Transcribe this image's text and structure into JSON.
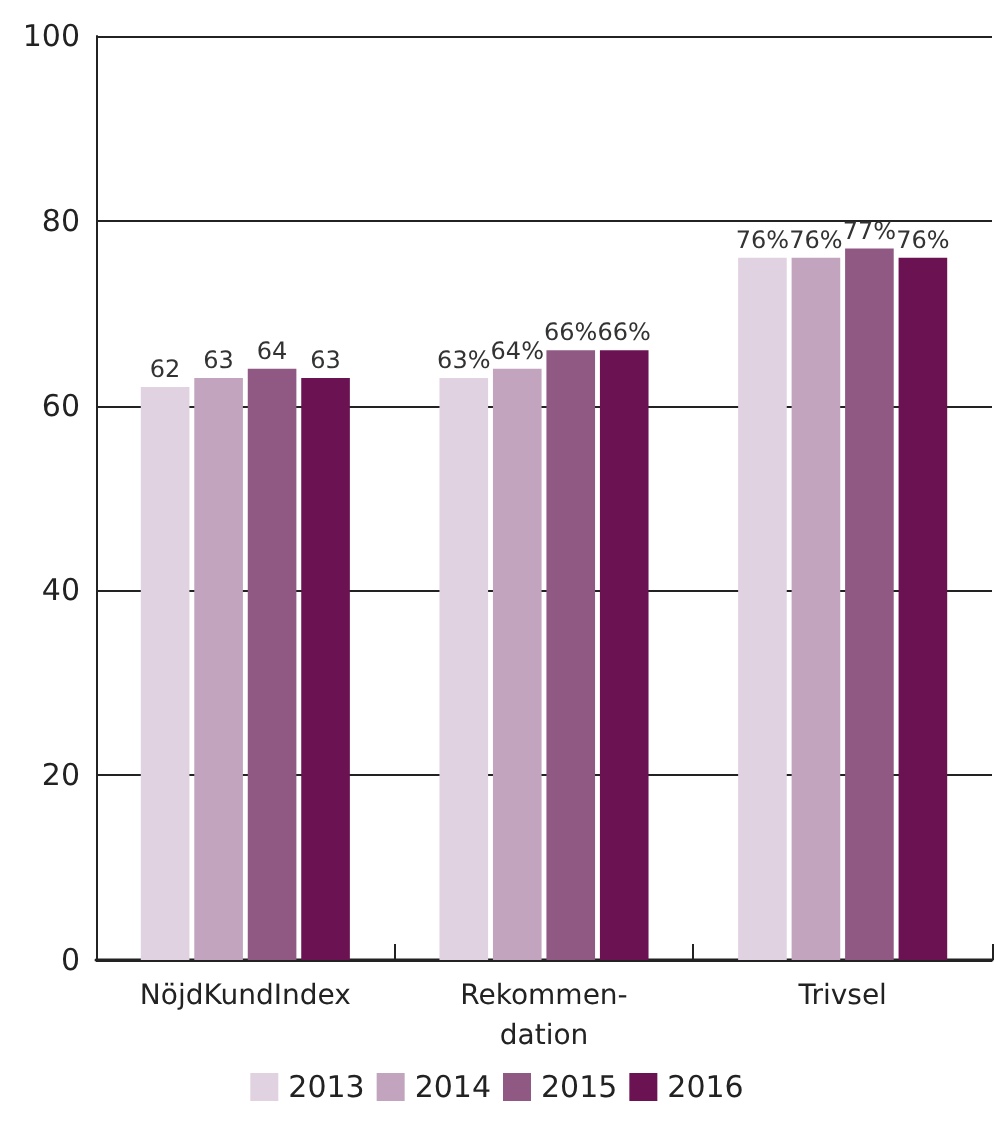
{
  "chart_data": {
    "type": "bar",
    "categories": [
      "NöjdKundIndex",
      "Rekommen-\ndation",
      "Trivsel"
    ],
    "series": [
      {
        "name": "2013",
        "color": "#e0d2e0",
        "values": [
          62,
          63,
          76
        ],
        "value_labels": [
          "62",
          "63%",
          "76%"
        ]
      },
      {
        "name": "2014",
        "color": "#c2a4be",
        "values": [
          63,
          64,
          76
        ],
        "value_labels": [
          "63",
          "64%",
          "76%"
        ]
      },
      {
        "name": "2015",
        "color": "#905983",
        "values": [
          64,
          66,
          77
        ],
        "value_labels": [
          "64",
          "66%",
          "77%"
        ]
      },
      {
        "name": "2016",
        "color": "#6a1252",
        "values": [
          63,
          66,
          76
        ],
        "value_labels": [
          "63",
          "66%",
          "76%"
        ]
      }
    ],
    "ylim": [
      0,
      100
    ],
    "yticks": [
      0,
      20,
      40,
      60,
      80,
      100
    ],
    "grid": "y",
    "legend": "bottom"
  }
}
